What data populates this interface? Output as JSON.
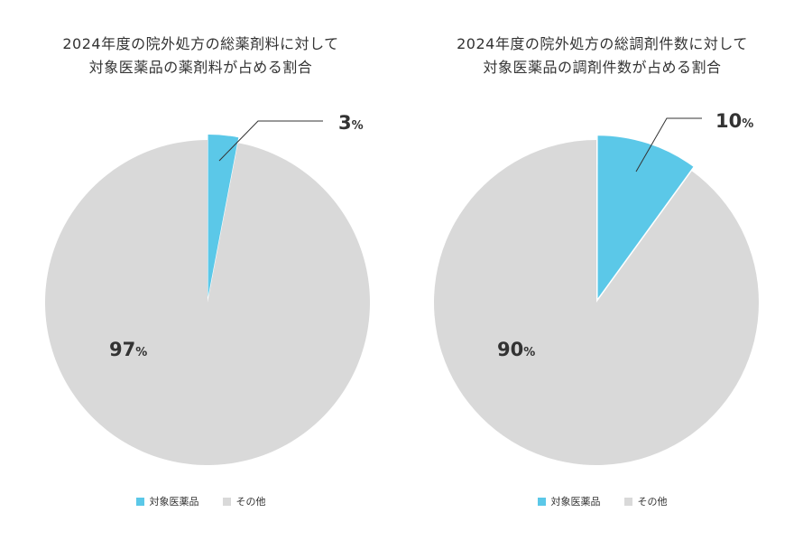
{
  "chart_data": [
    {
      "type": "pie",
      "title": [
        "2024年度の院外処方の総薬剤料に対して",
        "対象医薬品の薬剤料が占める割合"
      ],
      "slices": [
        {
          "label": "対象医薬品",
          "value": 3,
          "display": "3",
          "unit": "%"
        },
        {
          "label": "その他",
          "value": 97,
          "display": "97",
          "unit": "%"
        }
      ],
      "legend": [
        "対象医薬品",
        "その他"
      ],
      "legend_position": "bottom",
      "colors": {
        "対象医薬品": "#5bc8e8",
        "その他": "#d9d9d9"
      }
    },
    {
      "type": "pie",
      "title": [
        "2024年度の院外処方の総調剤件数に対して",
        "対象医薬品の調剤件数が占める割合"
      ],
      "slices": [
        {
          "label": "対象医薬品",
          "value": 10,
          "display": "10",
          "unit": "%"
        },
        {
          "label": "その他",
          "value": 90,
          "display": "90",
          "unit": "%"
        }
      ],
      "legend": [
        "対象医薬品",
        "その他"
      ],
      "legend_position": "bottom",
      "colors": {
        "対象医薬品": "#5bc8e8",
        "その他": "#d9d9d9"
      }
    }
  ]
}
